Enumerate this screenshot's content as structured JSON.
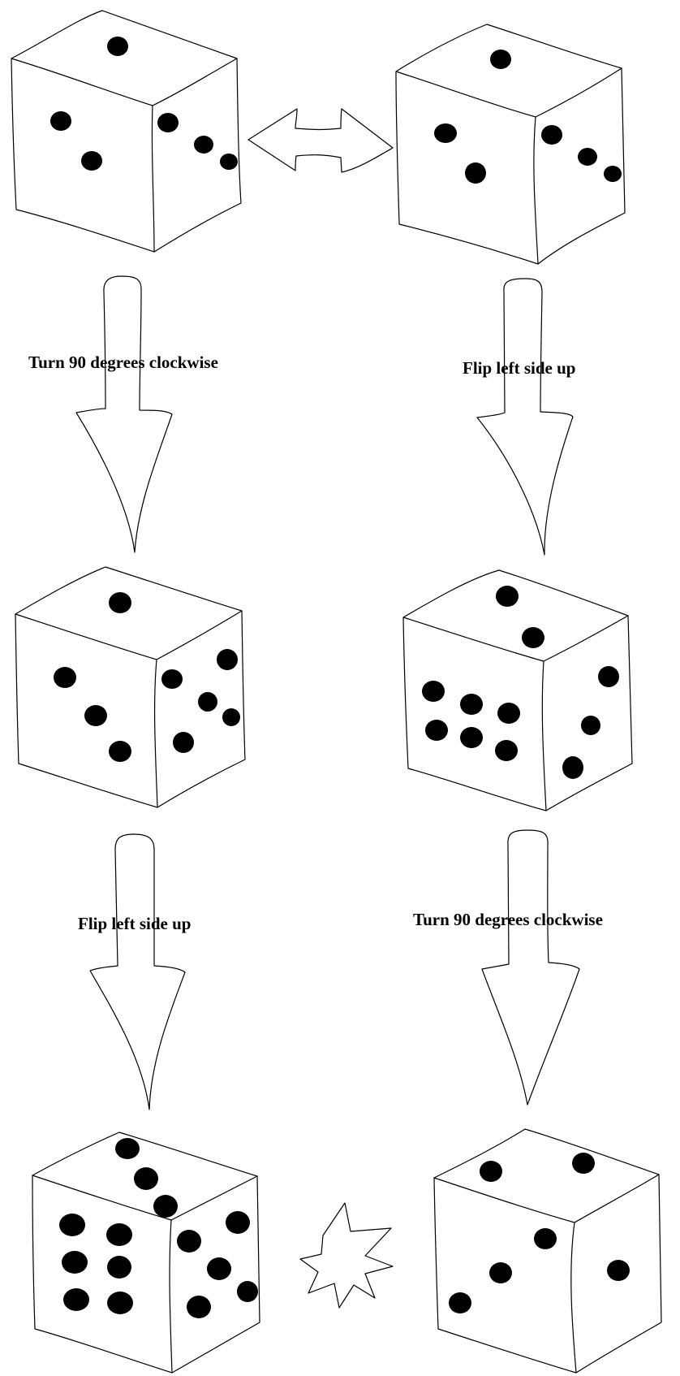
{
  "labels": {
    "left_step_1": "Turn 90 degrees clockwise",
    "right_step_1": "Flip left side up",
    "left_step_2": "Flip left side up",
    "right_step_2": "Turn 90 degrees clockwise"
  },
  "dice": [
    {
      "id": "die-top-left",
      "top": 1,
      "left": 2,
      "right": 3
    },
    {
      "id": "die-top-right",
      "top": 1,
      "left": 2,
      "right": 3
    },
    {
      "id": "die-middle-left",
      "top": 1,
      "left": 3,
      "right": 5
    },
    {
      "id": "die-middle-right",
      "top": 2,
      "left": 6,
      "right": 3
    },
    {
      "id": "die-bottom-left",
      "top": 3,
      "left": 6,
      "right": 5
    },
    {
      "id": "die-bottom-right",
      "top": 2,
      "left": 3,
      "right": 1
    }
  ],
  "symbols": {
    "between_top_dice": "double-arrow-icon",
    "between_bottom_dice": "starburst-icon"
  },
  "colors": {
    "ink": "#000000",
    "paper": "#ffffff"
  }
}
